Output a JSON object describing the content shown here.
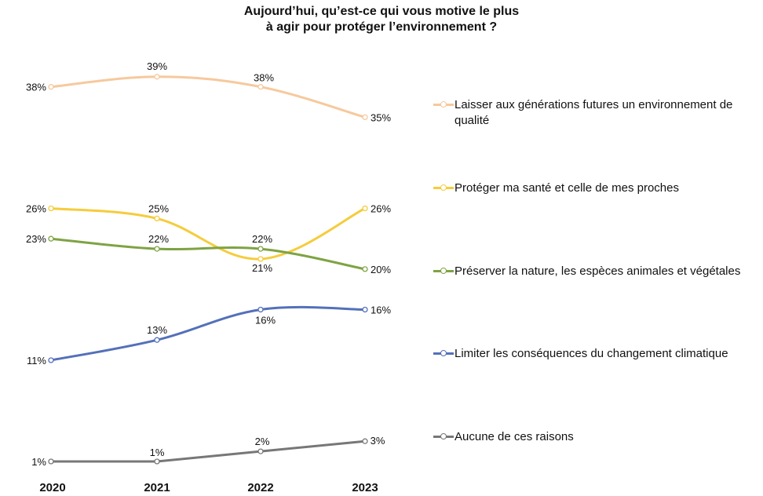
{
  "chart_data": {
    "type": "line",
    "title_lines": [
      "Aujourd’hui, qu’est-ce qui vous motive le plus",
      "à agir pour protéger l’environnement ?"
    ],
    "categories": [
      "2020",
      "2021",
      "2022",
      "2023"
    ],
    "series": [
      {
        "name": "Laisser aux générations futures un environnement de qualité",
        "values": [
          38,
          39,
          38,
          35
        ],
        "labels": [
          "38%",
          "39%",
          "38%",
          "35%"
        ],
        "color": "#f6c99d"
      },
      {
        "name": "Protéger ma santé et celle de mes proches",
        "values": [
          26,
          25,
          21,
          26
        ],
        "labels": [
          "26%",
          "25%",
          "21%",
          "26%"
        ],
        "color": "#f5cc3c"
      },
      {
        "name": "Préserver la nature, les espèces animales et végétales",
        "values": [
          23,
          22,
          22,
          20
        ],
        "labels": [
          "23%",
          "22%",
          "22%",
          "20%"
        ],
        "color": "#7ea343"
      },
      {
        "name": "Limiter les conséquences du changement climatique",
        "values": [
          11,
          13,
          16,
          16
        ],
        "labels": [
          "11%",
          "13%",
          "16%",
          "16%"
        ],
        "color": "#5470b9"
      },
      {
        "name": "Aucune de ces raisons",
        "values": [
          1,
          1,
          2,
          3
        ],
        "labels": [
          "1%",
          "1%",
          "2%",
          "3%"
        ],
        "color": "#777777"
      }
    ],
    "grid": false,
    "legend_position": "right"
  }
}
